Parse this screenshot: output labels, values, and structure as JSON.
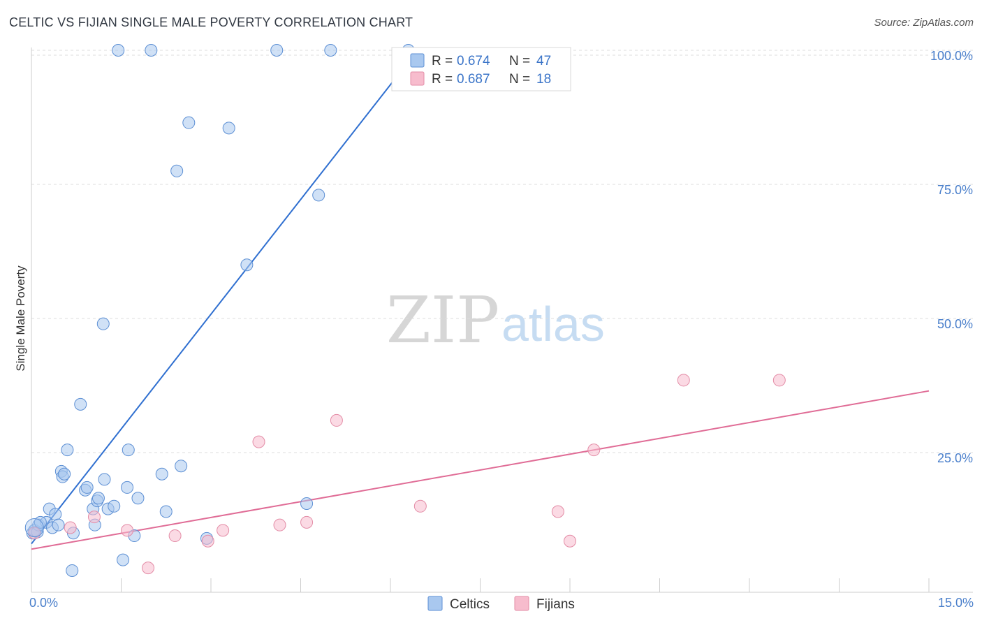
{
  "title": "CELTIC VS FIJIAN SINGLE MALE POVERTY CORRELATION CHART",
  "source": "Source: ZipAtlas.com",
  "watermark": {
    "zip": "ZIP",
    "atlas": "atlas"
  },
  "colors": {
    "celtics_fill": "#a9c8ef",
    "celtics_stroke": "#5c8fd4",
    "celtics_line": "#2f6fd0",
    "fijians_fill": "#f7bccd",
    "fijians_stroke": "#e38ca6",
    "fijians_line": "#e06c96",
    "tick_label": "#4a7fcb",
    "grid": "#dcdcdc"
  },
  "legend": {
    "celtics": {
      "r_label": "R =",
      "r_value": "0.674",
      "n_label": "N =",
      "n_value": "47"
    },
    "fijians": {
      "r_label": "R =",
      "r_value": "0.687",
      "n_label": "N =",
      "n_value": "18"
    }
  },
  "bottom_legend": {
    "celtics": "Celtics",
    "fijians": "Fijians"
  },
  "chart_data": {
    "type": "scatter",
    "title": "CELTIC VS FIJIAN SINGLE MALE POVERTY CORRELATION CHART",
    "xlabel": "",
    "ylabel": "Single Male Poverty",
    "xlim": [
      0,
      15
    ],
    "ylim": [
      0,
      100
    ],
    "x_tick_labels": [
      {
        "value": 0,
        "label": "0.0%"
      },
      {
        "value": 15,
        "label": "15.0%"
      }
    ],
    "y_tick_labels": [
      {
        "value": 25,
        "label": "25.0%"
      },
      {
        "value": 50,
        "label": "50.0%"
      },
      {
        "value": 75,
        "label": "75.0%"
      },
      {
        "value": 100,
        "label": "100.0%"
      }
    ],
    "grid": true,
    "series": [
      {
        "name": "Celtics",
        "points": [
          [
            0.02,
            10.0
          ],
          [
            0.05,
            10.5
          ],
          [
            0.1,
            10.2
          ],
          [
            0.12,
            11.5
          ],
          [
            0.25,
            12.0
          ],
          [
            0.3,
            14.5
          ],
          [
            0.35,
            11.0
          ],
          [
            0.4,
            13.5
          ],
          [
            0.45,
            11.5
          ],
          [
            0.5,
            21.5
          ],
          [
            0.52,
            20.5
          ],
          [
            0.55,
            21.0
          ],
          [
            0.6,
            25.5
          ],
          [
            0.68,
            3.0
          ],
          [
            0.7,
            10.0
          ],
          [
            0.82,
            34.0
          ],
          [
            0.9,
            18.0
          ],
          [
            0.93,
            18.5
          ],
          [
            1.03,
            14.5
          ],
          [
            1.06,
            11.5
          ],
          [
            1.1,
            16.0
          ],
          [
            1.12,
            16.5
          ],
          [
            1.2,
            49.0
          ],
          [
            1.22,
            20.0
          ],
          [
            1.28,
            14.5
          ],
          [
            1.38,
            15.0
          ],
          [
            1.53,
            5.0
          ],
          [
            1.6,
            18.5
          ],
          [
            1.62,
            25.5
          ],
          [
            1.72,
            9.5
          ],
          [
            1.78,
            16.5
          ],
          [
            1.45,
            100.0
          ],
          [
            2.0,
            100.0
          ],
          [
            2.18,
            21.0
          ],
          [
            2.25,
            14.0
          ],
          [
            2.43,
            77.5
          ],
          [
            2.5,
            22.5
          ],
          [
            2.63,
            86.5
          ],
          [
            2.93,
            9.0
          ],
          [
            3.3,
            85.5
          ],
          [
            3.6,
            60.0
          ],
          [
            4.1,
            100.0
          ],
          [
            4.6,
            15.5
          ],
          [
            4.8,
            73.0
          ],
          [
            5.0,
            100.0
          ],
          [
            6.3,
            100.0
          ],
          [
            0.15,
            12.0
          ]
        ],
        "trend_line": {
          "x": [
            0.0,
            6.45
          ],
          "y": [
            8.0,
            100.0
          ]
        }
      },
      {
        "name": "Fijians",
        "points": [
          [
            0.05,
            10.0
          ],
          [
            0.65,
            11.0
          ],
          [
            1.05,
            13.0
          ],
          [
            1.6,
            10.5
          ],
          [
            1.95,
            3.5
          ],
          [
            2.4,
            9.5
          ],
          [
            2.95,
            8.5
          ],
          [
            3.2,
            10.5
          ],
          [
            3.8,
            27.0
          ],
          [
            4.15,
            11.5
          ],
          [
            4.6,
            12.0
          ],
          [
            5.1,
            31.0
          ],
          [
            6.5,
            15.0
          ],
          [
            8.8,
            14.0
          ],
          [
            9.0,
            8.5
          ],
          [
            9.4,
            25.5
          ],
          [
            10.9,
            38.5
          ],
          [
            12.5,
            38.5
          ]
        ],
        "trend_line": {
          "x": [
            0.0,
            15.0
          ],
          "y": [
            7.0,
            36.5
          ]
        }
      }
    ]
  }
}
